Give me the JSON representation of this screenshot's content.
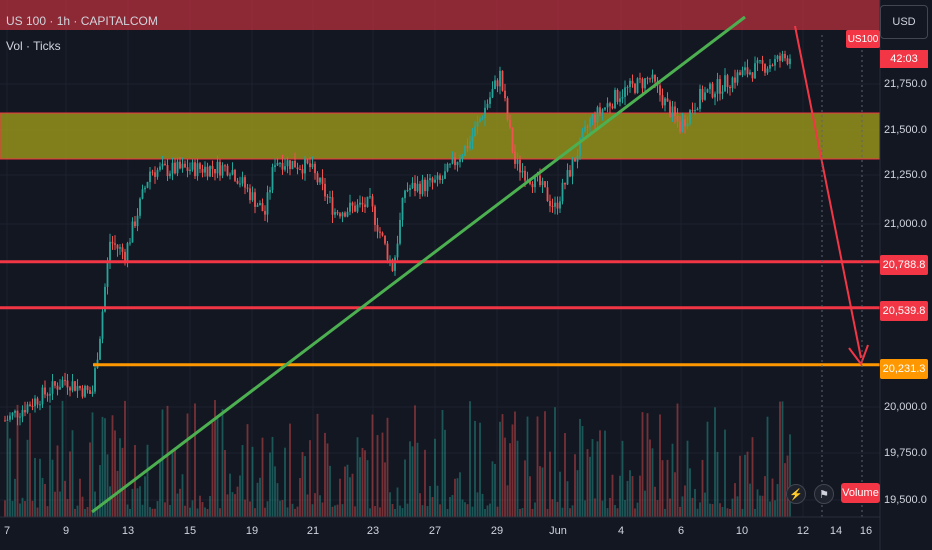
{
  "header": {
    "title": "US 100 · 1h · CAPITALCOM",
    "indicator": "Vol · Ticks"
  },
  "currency_label": "USD",
  "symbol_tag": "US100",
  "countdown": "42:03",
  "y_axis": {
    "labels": [
      "21,750.0",
      "21,500.0",
      "21,250.0",
      "21,000.0",
      "20,000.0",
      "19,750.0",
      "19,500.0"
    ]
  },
  "levels": [
    {
      "label": "20,788.8",
      "price": 20788.8,
      "color": "#f23645"
    },
    {
      "label": "20,539.8",
      "price": 20539.8,
      "color": "#f23645"
    },
    {
      "label": "20,231.3",
      "price": 20231.3,
      "color": "#ff9800"
    }
  ],
  "zone": {
    "low": 21350,
    "high": 21600,
    "color": "#9d9a1a"
  },
  "x_axis": {
    "labels": [
      "7",
      "9",
      "13",
      "15",
      "19",
      "21",
      "23",
      "27",
      "29",
      "Jun",
      "4",
      "6",
      "10",
      "12",
      "14",
      "16"
    ]
  },
  "volume_label": "Volume",
  "icons": {
    "lightning": "lightning-icon",
    "flag": "flag-icon",
    "alert": "alert-icon"
  },
  "colors": {
    "up": "#26a69a",
    "down": "#ef5350",
    "trend": "#4caf50",
    "arrow": "#f23645",
    "bg": "#131722"
  },
  "chart_data": {
    "type": "candlestick",
    "title": "US 100 · 1h · CAPITALCOM",
    "ylim": [
      19450,
      22000
    ],
    "close_path": [
      {
        "x": "7",
        "y": 19930
      },
      {
        "x": "9",
        "y": 20150
      },
      {
        "x": "10",
        "y": 20070
      },
      {
        "x": "11",
        "y": 20400
      },
      {
        "x": "12",
        "y": 20900
      },
      {
        "x": "13",
        "y": 20830
      },
      {
        "x": "14",
        "y": 21280
      },
      {
        "x": "15",
        "y": 21290
      },
      {
        "x": "17",
        "y": 21300
      },
      {
        "x": "19",
        "y": 21050
      },
      {
        "x": "20",
        "y": 21340
      },
      {
        "x": "21",
        "y": 21300
      },
      {
        "x": "22",
        "y": 21060
      },
      {
        "x": "23",
        "y": 21100
      },
      {
        "x": "24",
        "y": 20750
      },
      {
        "x": "26",
        "y": 21180
      },
      {
        "x": "27",
        "y": 21220
      },
      {
        "x": "28",
        "y": 21440
      },
      {
        "x": "29",
        "y": 21800
      },
      {
        "x": "30",
        "y": 21320
      },
      {
        "x": "Jun",
        "y": 21200
      },
      {
        "x": "2",
        "y": 21080
      },
      {
        "x": "3",
        "y": 21550
      },
      {
        "x": "4",
        "y": 21700
      },
      {
        "x": "5",
        "y": 21780
      },
      {
        "x": "6",
        "y": 21520
      },
      {
        "x": "7",
        "y": 21680
      },
      {
        "x": "10",
        "y": 21800
      },
      {
        "x": "11",
        "y": 21900
      }
    ]
  }
}
